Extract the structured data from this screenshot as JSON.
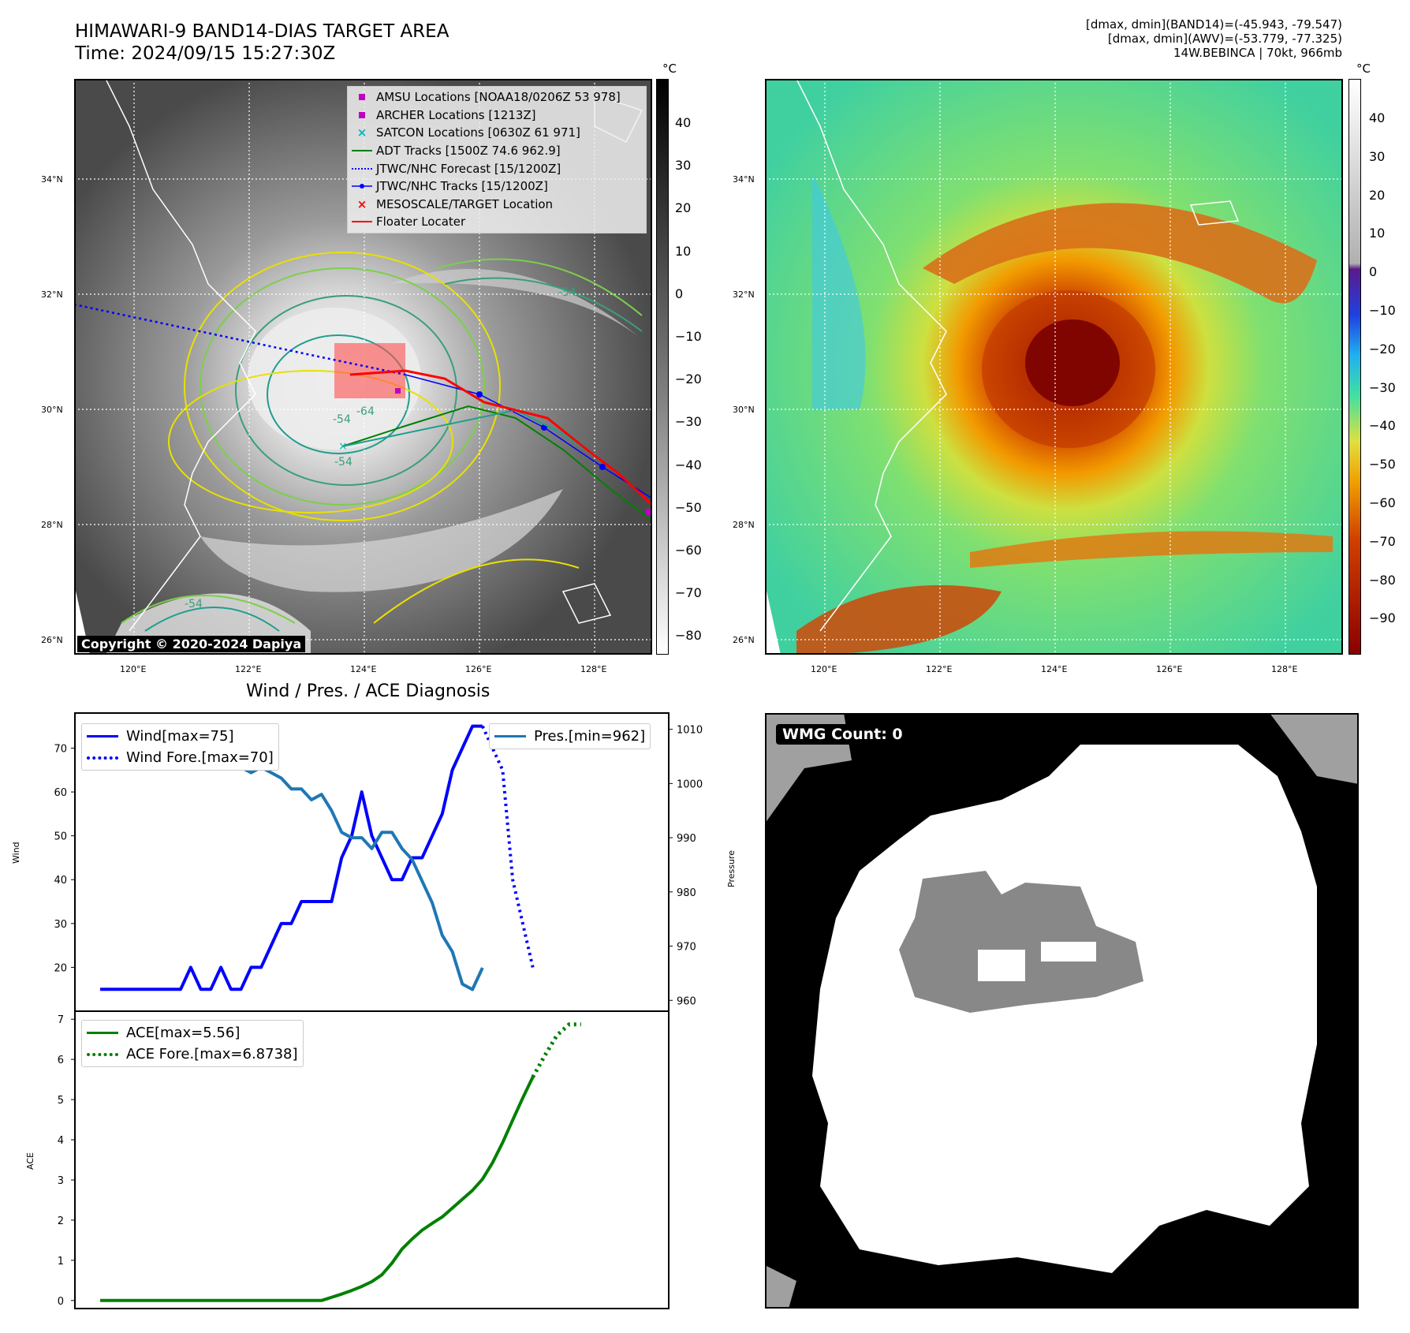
{
  "header": {
    "title_line1": "HIMAWARI-9 BAND14-DIAS TARGET AREA",
    "title_line2": "Time: 2024/09/15 15:27:30Z",
    "info_line1": "[dmax, dmin](BAND14)=(-45.943, -79.547)",
    "info_line2": "[dmax, dmin](AWV)=(-53.779, -77.325)",
    "info_line3": "14W.BEBINCA | 70kt, 966mb"
  },
  "map": {
    "lat_labels": [
      "34°N",
      "32°N",
      "30°N",
      "28°N",
      "26°N"
    ],
    "lon_labels": [
      "120°E",
      "122°E",
      "124°E",
      "126°E",
      "128°E"
    ],
    "copyright": "Copyright © 2020-2024 Dapiya",
    "contour_labels": [
      "-64",
      "-54",
      "-54",
      "-54",
      "-54"
    ],
    "legend": [
      {
        "label": "AMSU Locations [NOAA18/0206Z 53 978]",
        "symbol": "square",
        "color": "#c000c0"
      },
      {
        "label": "ARCHER Locations [1213Z]",
        "symbol": "square",
        "color": "#c000c0"
      },
      {
        "label": "SATCON Locations [0630Z 61 971]",
        "symbol": "x",
        "color": "#00b8b8"
      },
      {
        "label": "ADT Tracks [1500Z 74.6 962.9]",
        "symbol": "line",
        "color": "#008000"
      },
      {
        "label": "JTWC/NHC Forecast [15/1200Z]",
        "symbol": "dotted",
        "color": "#0000ff"
      },
      {
        "label": "JTWC/NHC Tracks [15/1200Z]",
        "symbol": "dotline",
        "color": "#0000ff"
      },
      {
        "label": "MESOSCALE/TARGET Location",
        "symbol": "x",
        "color": "#ff0000"
      },
      {
        "label": "Floater Locater",
        "symbol": "line",
        "color": "#ff0000"
      }
    ]
  },
  "colorbar_gray": {
    "unit": "°C",
    "ticks": [
      "40",
      "30",
      "20",
      "10",
      "0",
      "−10",
      "−20",
      "−30",
      "−40",
      "−50",
      "−60",
      "−70",
      "−80"
    ]
  },
  "colorbar_color": {
    "unit": "°C",
    "ticks": [
      "40",
      "30",
      "20",
      "10",
      "0",
      "−10",
      "−20",
      "−30",
      "−40",
      "−50",
      "−60",
      "−70",
      "−80",
      "−90"
    ]
  },
  "diagnosis": {
    "title": "Wind / Pres. / ACE Diagnosis",
    "wind_ylabel": "Wind",
    "pres_ylabel": "Pressure",
    "ace_ylabel": "ACE",
    "wind_ticks": [
      "70",
      "60",
      "50",
      "40",
      "30",
      "20"
    ],
    "pres_ticks": [
      "1010",
      "1000",
      "990",
      "980",
      "970",
      "960"
    ],
    "ace_ticks": [
      "7",
      "6",
      "5",
      "4",
      "3",
      "2",
      "1",
      "0"
    ],
    "legend_wind": "Wind[max=75]",
    "legend_wind_fore": "Wind Fore.[max=70]",
    "legend_pres": "Pres.[min=962]",
    "legend_ace": "ACE[max=5.56]",
    "legend_ace_fore": "ACE Fore.[max=6.8738]"
  },
  "wmg": {
    "label": "WMG Count: 0"
  },
  "chart_data": {
    "type": "line",
    "series": [
      {
        "name": "Wind[max=75]",
        "color": "#0000ff",
        "y": [
          15,
          15,
          15,
          15,
          15,
          15,
          15,
          15,
          15,
          20,
          15,
          15,
          20,
          15,
          15,
          20,
          20,
          25,
          30,
          30,
          35,
          35,
          35,
          35,
          45,
          50,
          60,
          50,
          45,
          40,
          40,
          45,
          45,
          50,
          55,
          65,
          70,
          75,
          75
        ]
      },
      {
        "name": "Wind Fore.[max=70]",
        "color": "#0000ff",
        "x_start": 38,
        "y": [
          75,
          70,
          65,
          40,
          30,
          20
        ]
      },
      {
        "name": "Pres.[min=962]",
        "color": "#1f77b4",
        "y": [
          1010,
          1008,
          1008,
          1008,
          1008,
          1009,
          1009,
          1007,
          1006,
          1004,
          1004,
          1003,
          1003,
          1003,
          1003,
          1002,
          1003,
          1002,
          1001,
          999,
          999,
          997,
          998,
          995,
          991,
          990,
          990,
          988,
          991,
          991,
          988,
          986,
          982,
          978,
          972,
          969,
          963,
          962,
          966
        ]
      },
      {
        "name": "ACE[max=5.56]",
        "color": "#008000",
        "y": [
          0,
          0,
          0,
          0,
          0,
          0,
          0,
          0,
          0,
          0,
          0,
          0,
          0,
          0,
          0,
          0,
          0,
          0,
          0,
          0,
          0,
          0,
          0,
          0.08,
          0.16,
          0.25,
          0.35,
          0.47,
          0.64,
          0.93,
          1.28,
          1.53,
          1.75,
          1.92,
          2.08,
          2.3,
          2.52,
          2.74,
          3.02,
          3.43,
          3.93,
          4.49,
          5.04,
          5.56
        ]
      },
      {
        "name": "ACE Fore.[max=6.8738]",
        "color": "#008000",
        "x_start": 43,
        "y": [
          5.56,
          6.1,
          6.6,
          6.87,
          6.87
        ]
      }
    ],
    "wind_ylim": [
      10,
      78
    ],
    "pres_ylim": [
      958,
      1013
    ],
    "ace_ylim": [
      -0.2,
      7.2
    ]
  }
}
